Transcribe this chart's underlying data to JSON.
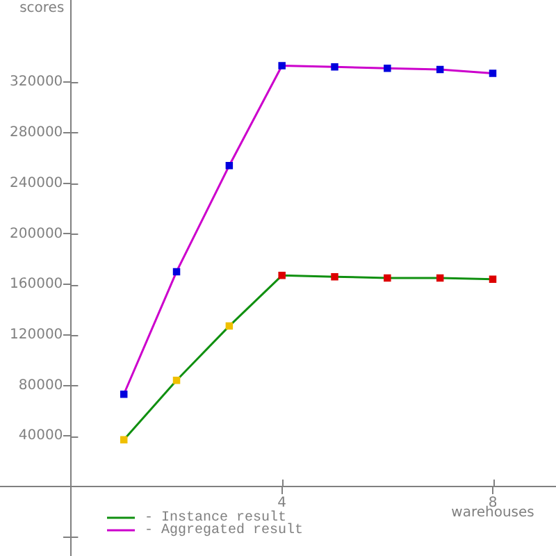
{
  "chart_data": {
    "type": "line",
    "xlabel": "warehouses",
    "ylabel": "scores",
    "x": [
      1,
      2,
      3,
      4,
      5,
      6,
      7,
      8
    ],
    "series": [
      {
        "name": "- Instance result",
        "color": "#109010",
        "colors": [
          "#f0c000",
          "#f0c000",
          "#f0c000",
          "#dd0000",
          "#dd0000",
          "#dd0000",
          "#dd0000",
          "#dd0000"
        ],
        "values": [
          37000,
          84000,
          127000,
          167000,
          166000,
          165000,
          165000,
          164000
        ]
      },
      {
        "name": "- Aggregated result",
        "color": "#cc00cc",
        "colors": [
          "#0000dd",
          "#0000dd",
          "#0000dd",
          "#0000dd",
          "#0000dd",
          "#0000dd",
          "#0000dd",
          "#0000dd"
        ],
        "values": [
          73000,
          170000,
          254000,
          333000,
          332000,
          331000,
          330000,
          327000
        ]
      }
    ],
    "xlim": [
      -1.35,
      9.2
    ],
    "ylim": [
      -55000,
      385000
    ],
    "xticks": [
      4,
      8
    ],
    "yticks": [
      {
        "value": -40000,
        "label": null
      },
      40000,
      80000,
      120000,
      160000,
      200000,
      240000,
      280000,
      320000
    ],
    "grid": false,
    "legend": "bottom left",
    "marker": "square",
    "line_style": "solid"
  }
}
